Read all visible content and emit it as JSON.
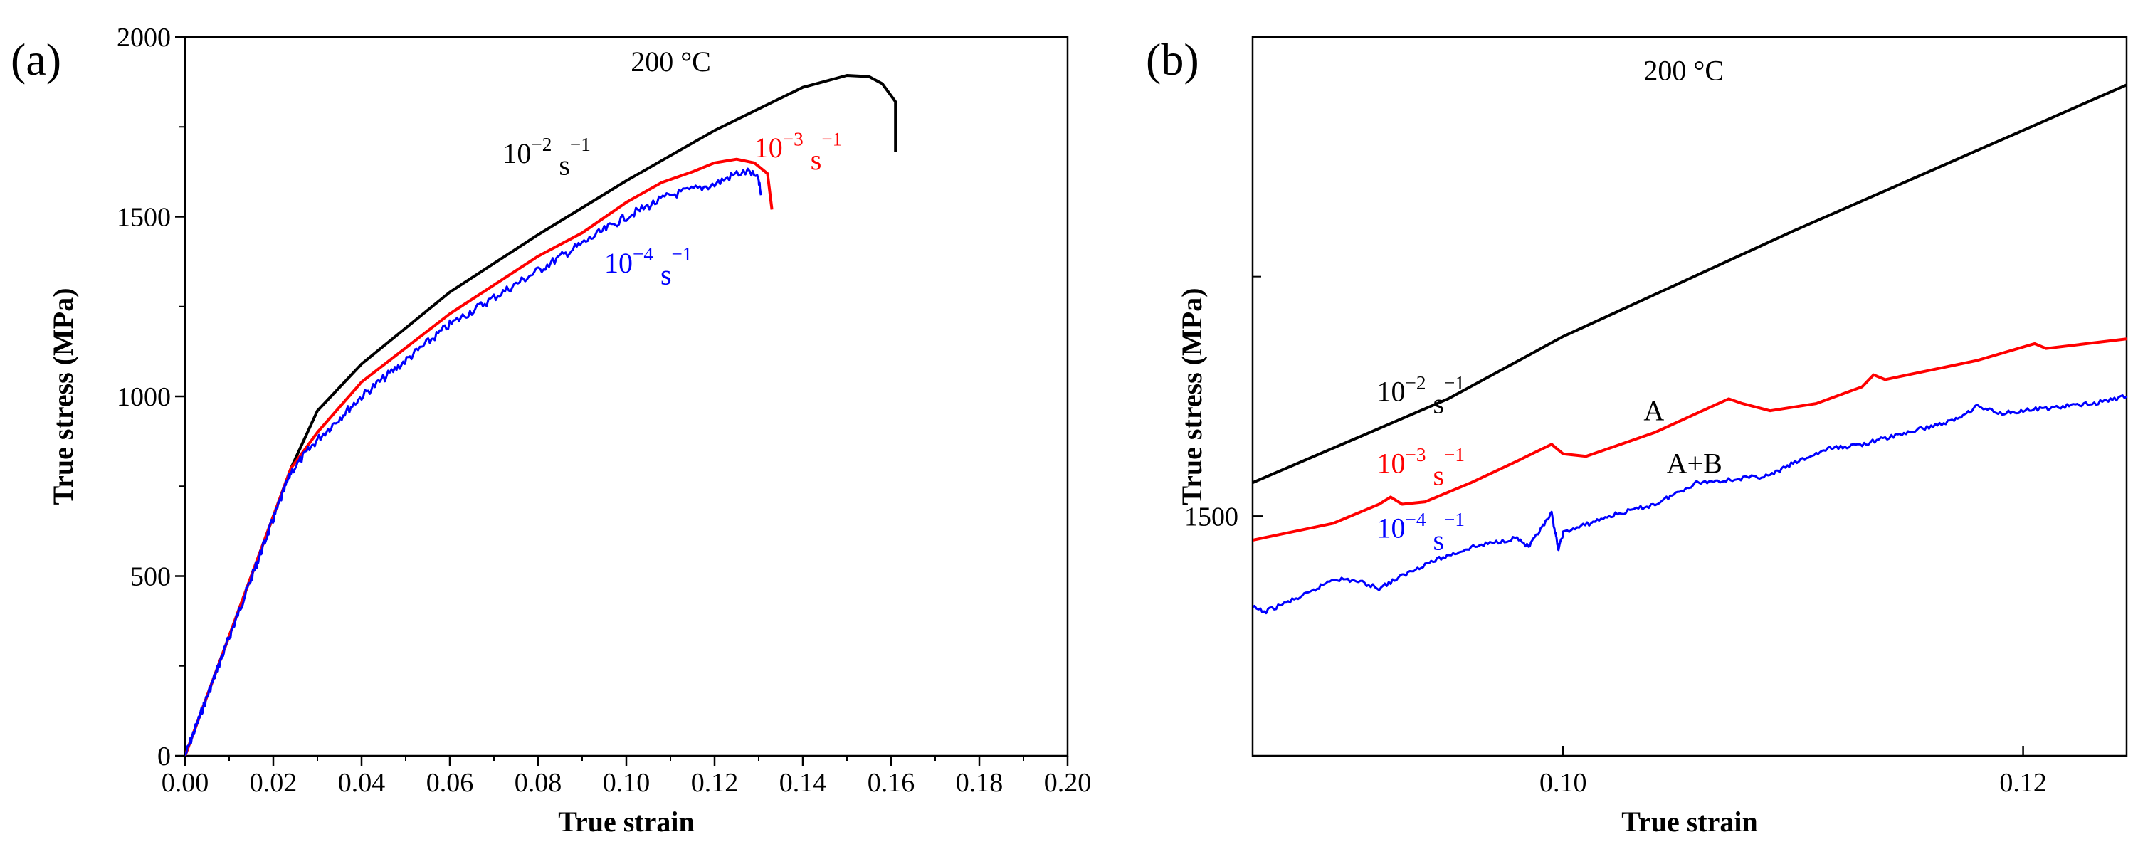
{
  "chart_data": [
    {
      "panel_label": "(a)",
      "type": "line",
      "title": "200 °C",
      "xlabel": "True strain",
      "ylabel": "True stress (MPa)",
      "xlim": [
        0.0,
        0.2
      ],
      "ylim": [
        0,
        2000
      ],
      "xticks": [
        0.0,
        0.02,
        0.04,
        0.06,
        0.08,
        0.1,
        0.12,
        0.14,
        0.16,
        0.18,
        0.2
      ],
      "xtick_labels": [
        "0.00",
        "0.02",
        "0.04",
        "0.06",
        "0.08",
        "0.10",
        "0.12",
        "0.14",
        "0.16",
        "0.18",
        "0.20"
      ],
      "yticks": [
        0,
        500,
        1000,
        1500,
        2000
      ],
      "ytick_labels": [
        "0",
        "500",
        "1000",
        "1500",
        "2000"
      ],
      "grid": false,
      "series": [
        {
          "name": "10^-2 s^-1",
          "color": "#000000",
          "noise": 0,
          "points": [
            [
              0,
              0
            ],
            [
              0.024,
              800
            ],
            [
              0.03,
              960
            ],
            [
              0.04,
              1090
            ],
            [
              0.06,
              1290
            ],
            [
              0.08,
              1450
            ],
            [
              0.1,
              1600
            ],
            [
              0.12,
              1740
            ],
            [
              0.14,
              1860
            ],
            [
              0.15,
              1893
            ],
            [
              0.155,
              1890
            ],
            [
              0.158,
              1870
            ],
            [
              0.161,
              1820
            ],
            [
              0.161,
              1680
            ]
          ]
        },
        {
          "name": "10^-3 s^-1",
          "color": "#ff0000",
          "noise": 0,
          "points": [
            [
              0,
              0
            ],
            [
              0.024,
              800
            ],
            [
              0.03,
              900
            ],
            [
              0.04,
              1040
            ],
            [
              0.06,
              1230
            ],
            [
              0.08,
              1390
            ],
            [
              0.09,
              1455
            ],
            [
              0.1,
              1540
            ],
            [
              0.108,
              1595
            ],
            [
              0.115,
              1625
            ],
            [
              0.12,
              1650
            ],
            [
              0.125,
              1660
            ],
            [
              0.129,
              1650
            ],
            [
              0.132,
              1620
            ],
            [
              0.133,
              1520
            ]
          ]
        },
        {
          "name": "10^-4 s^-1",
          "color": "#0000ff",
          "noise": 6,
          "points": [
            [
              0,
              0
            ],
            [
              0.024,
              790
            ],
            [
              0.03,
              880
            ],
            [
              0.04,
              1000
            ],
            [
              0.06,
              1200
            ],
            [
              0.08,
              1350
            ],
            [
              0.1,
              1500
            ],
            [
              0.11,
              1560
            ],
            [
              0.12,
              1590
            ],
            [
              0.125,
              1620
            ],
            [
              0.128,
              1625
            ],
            [
              0.13,
              1600
            ],
            [
              0.1305,
              1560
            ]
          ]
        }
      ],
      "annotations": [
        {
          "text": "200 °C",
          "x": 0.101,
          "y": 1905,
          "color": "#000000"
        },
        {
          "base": "10",
          "exp": "−2",
          "unit": " s",
          "unitexp": "−1",
          "x": 0.072,
          "y": 1650,
          "color": "#000000"
        },
        {
          "base": "10",
          "exp": "−3",
          "unit": " s",
          "unitexp": "−1",
          "x": 0.129,
          "y": 1665,
          "color": "#ff0000"
        },
        {
          "base": "10",
          "exp": "−4",
          "unit": " s",
          "unitexp": "−1",
          "x": 0.095,
          "y": 1345,
          "color": "#0000ff"
        }
      ]
    },
    {
      "panel_label": "(b)",
      "type": "line",
      "title": "200 °C",
      "xlabel": "True strain",
      "ylabel": "True stress (MPa)",
      "xlim": [
        0.0865,
        0.1245
      ],
      "ylim": [
        1400,
        1700
      ],
      "xticks": [
        0.1,
        0.12
      ],
      "xtick_labels": [
        "0.10",
        "0.12"
      ],
      "yticks": [
        1500
      ],
      "ytick_labels": [
        "1500"
      ],
      "y_minor_ticks": [
        1400,
        1600,
        1700
      ],
      "grid": false,
      "series": [
        {
          "name": "10^-2 s^-1",
          "color": "#000000",
          "noise": 0,
          "points": [
            [
              0.0865,
              1514
            ],
            [
              0.095,
              1549
            ],
            [
              0.1,
              1575
            ],
            [
              0.105,
              1597
            ],
            [
              0.11,
              1619
            ],
            [
              0.115,
              1640
            ],
            [
              0.1245,
              1680
            ]
          ]
        },
        {
          "name": "10^-3 s^-1",
          "color": "#ff0000",
          "noise": 0,
          "points": [
            [
              0.0865,
              1490
            ],
            [
              0.09,
              1497
            ],
            [
              0.092,
              1505
            ],
            [
              0.0925,
              1508
            ],
            [
              0.093,
              1505
            ],
            [
              0.094,
              1506
            ],
            [
              0.096,
              1514
            ],
            [
              0.098,
              1523
            ],
            [
              0.0995,
              1530
            ],
            [
              0.1,
              1526
            ],
            [
              0.101,
              1525
            ],
            [
              0.104,
              1535
            ],
            [
              0.1072,
              1549
            ],
            [
              0.1078,
              1547
            ],
            [
              0.109,
              1544
            ],
            [
              0.111,
              1547
            ],
            [
              0.113,
              1554
            ],
            [
              0.1135,
              1559
            ],
            [
              0.114,
              1557
            ],
            [
              0.118,
              1565
            ],
            [
              0.1205,
              1572
            ],
            [
              0.121,
              1570
            ],
            [
              0.1245,
              1574
            ]
          ]
        },
        {
          "name": "10^-4 s^-1",
          "color": "#0000ff",
          "noise": 3,
          "points": [
            [
              0.0865,
              1462
            ],
            [
              0.087,
              1460
            ],
            [
              0.089,
              1468
            ],
            [
              0.09,
              1474
            ],
            [
              0.091,
              1473
            ],
            [
              0.092,
              1470
            ],
            [
              0.094,
              1480
            ],
            [
              0.096,
              1487
            ],
            [
              0.098,
              1491
            ],
            [
              0.0985,
              1487
            ],
            [
              0.0995,
              1501
            ],
            [
              0.0998,
              1486
            ],
            [
              0.1,
              1493
            ],
            [
              0.102,
              1500
            ],
            [
              0.104,
              1505
            ],
            [
              0.1058,
              1514
            ],
            [
              0.107,
              1515
            ],
            [
              0.109,
              1517
            ],
            [
              0.11,
              1522
            ],
            [
              0.1115,
              1528
            ],
            [
              0.113,
              1530
            ],
            [
              0.115,
              1535
            ],
            [
              0.117,
              1540
            ],
            [
              0.118,
              1546
            ],
            [
              0.119,
              1543
            ],
            [
              0.121,
              1545
            ],
            [
              0.123,
              1547
            ],
            [
              0.1245,
              1550
            ]
          ]
        }
      ],
      "annotations": [
        {
          "text": "200 °C",
          "x": 0.1035,
          "y": 1682,
          "color": "#000000"
        },
        {
          "base": "10",
          "exp": "−2",
          "unit": " s",
          "unitexp": "−1",
          "x": 0.0919,
          "y": 1548,
          "color": "#000000"
        },
        {
          "text": "A",
          "x": 0.1035,
          "y": 1540,
          "color": "#000000"
        },
        {
          "base": "10",
          "exp": "−3",
          "unit": " s",
          "unitexp": "−1",
          "x": 0.0919,
          "y": 1518,
          "color": "#ff0000"
        },
        {
          "text": "A+B",
          "x": 0.1045,
          "y": 1518,
          "color": "#000000"
        },
        {
          "base": "10",
          "exp": "−4",
          "unit": " s",
          "unitexp": "−1",
          "x": 0.0919,
          "y": 1491,
          "color": "#0000ff"
        }
      ]
    }
  ]
}
